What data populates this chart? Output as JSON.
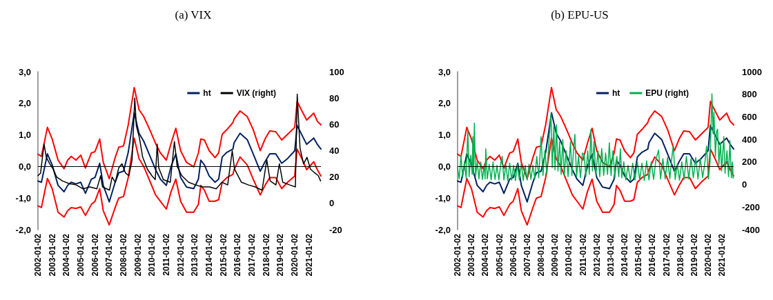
{
  "chart_data": [
    {
      "type": "line",
      "title": "(a) VIX",
      "legend": "top right",
      "x": [
        "2002-01-02",
        "2002-04-01",
        "2002-09-01",
        "2003-01-01",
        "2003-06-01",
        "2003-11-01",
        "2004-02-01",
        "2004-05-01",
        "2004-09-01",
        "2005-01-01",
        "2005-05-01",
        "2005-10-01",
        "2006-01-01",
        "2006-05-01",
        "2006-08-01",
        "2007-01-01",
        "2007-06-01",
        "2007-09-01",
        "2008-01-01",
        "2008-05-01",
        "2008-10-01",
        "2009-02-01",
        "2009-06-01",
        "2009-11-01",
        "2010-04-01",
        "2010-08-01",
        "2011-01-01",
        "2011-05-01",
        "2011-09-01",
        "2012-01-01",
        "2012-06-01",
        "2012-12-01",
        "2013-04-01",
        "2013-06-01",
        "2013-09-01",
        "2014-01-01",
        "2014-06-01",
        "2014-09-01",
        "2014-12-01",
        "2015-04-01",
        "2015-09-01",
        "2015-10-01",
        "2016-03-01",
        "2016-09-01",
        "2017-02-01",
        "2017-08-01",
        "2017-12-01",
        "2018-04-01",
        "2018-09-01",
        "2019-02-01",
        "2019-07-01",
        "2020-01-01",
        "2020-03-01",
        "2020-07-01",
        "2020-11-01",
        "2021-05-01",
        "2021-08-01",
        "2021-11-01"
      ],
      "xlim": [
        "2002-01-02",
        "2021-11-01"
      ],
      "xticks": [
        "2002-01-02",
        "2003-01-02",
        "2004-01-02",
        "2005-01-02",
        "2006-01-02",
        "2007-01-02",
        "2008-01-02",
        "2009-01-02",
        "2010-01-02",
        "2011-01-02",
        "2012-01-02",
        "2013-01-02",
        "2014-01-02",
        "2015-01-02",
        "2016-01-02",
        "2017-01-02",
        "2018-01-02",
        "2019-01-02",
        "2020-01-02",
        "2021-01-02"
      ],
      "ylim": [
        -2,
        3
      ],
      "yticks": [
        {
          "value": -2,
          "label": "-2,0"
        },
        {
          "value": -1,
          "label": "-1,0"
        },
        {
          "value": 0,
          "label": "0,0"
        },
        {
          "value": 1,
          "label": "1,0"
        },
        {
          "value": 2,
          "label": "2,0"
        },
        {
          "value": 3,
          "label": "3,0"
        }
      ],
      "y2lim": [
        -20,
        100
      ],
      "y2ticks": [
        -20,
        0,
        20,
        40,
        60,
        80,
        100
      ],
      "ref_lines": [
        {
          "axis": "y",
          "value": 0,
          "color": "#000000"
        }
      ],
      "series": [
        {
          "color": "#ff0000",
          "values": [
            0.39,
            0.32,
            1.24,
            0.87,
            0.2,
            -0.07,
            0.2,
            0.32,
            0.2,
            0.36,
            -0.05,
            0.43,
            0.47,
            0.87,
            0.13,
            -0.39,
            0.28,
            0.61,
            0.65,
            1.32,
            2.5,
            1.8,
            1.58,
            1.17,
            0.73,
            0.43,
            0.2,
            0.73,
            1.21,
            0.5,
            0.13,
            -0.01,
            0.43,
            0.87,
            0.84,
            0.5,
            0.28,
            0.43,
            1.02,
            1.17,
            1.39,
            1.5,
            1.76,
            1.58,
            1.17,
            0.5,
            0.87,
            1.13,
            1.1,
            0.84,
            1.02,
            1.24,
            2.06,
            1.76,
            1.47,
            1.69,
            1.43,
            1.32
          ]
        },
        {
          "color": "#ff0000",
          "values": [
            -1.25,
            -1.3,
            -0.38,
            -0.7,
            -1.45,
            -1.6,
            -1.4,
            -1.3,
            -1.33,
            -1.28,
            -1.55,
            -1.2,
            -1.1,
            -0.7,
            -1.4,
            -1.85,
            -1.3,
            -1.0,
            -0.95,
            -0.35,
            0.9,
            0.25,
            0.0,
            -0.45,
            -0.9,
            -1.1,
            -1.35,
            -0.8,
            -0.4,
            -1.1,
            -1.45,
            -1.45,
            -1.2,
            -0.6,
            -0.75,
            -1.1,
            -1.1,
            -1.05,
            -0.5,
            -0.35,
            -0.25,
            -0.1,
            0.3,
            0.05,
            -0.4,
            -0.9,
            -0.6,
            -0.35,
            -0.35,
            -0.7,
            -0.5,
            -0.3,
            0.55,
            0.25,
            -0.1,
            0.15,
            -0.1,
            -0.3
          ]
        },
        {
          "name": "ht",
          "color": "#002060",
          "values": [
            -0.46,
            -0.5,
            0.4,
            0.05,
            -0.6,
            -0.8,
            -0.6,
            -0.5,
            -0.55,
            -0.5,
            -0.85,
            -0.4,
            -0.35,
            0.1,
            -0.6,
            -1.12,
            -0.5,
            -0.2,
            -0.15,
            0.45,
            1.7,
            1.05,
            0.8,
            0.35,
            -0.1,
            -0.4,
            -0.6,
            0.0,
            0.4,
            -0.35,
            -0.65,
            -0.7,
            -0.4,
            0.2,
            0.05,
            -0.3,
            -0.5,
            -0.4,
            0.3,
            0.45,
            0.55,
            0.75,
            1.05,
            0.85,
            0.4,
            -0.15,
            0.15,
            0.4,
            0.4,
            0.1,
            0.25,
            0.5,
            1.3,
            1.0,
            0.7,
            0.9,
            0.7,
            0.55
          ]
        },
        {
          "name": "VIX (right)",
          "color": "#000000",
          "axis": "y2",
          "x": [
            "2002-01-02",
            "2002-03-10",
            "2002-06-07",
            "2002-08-04",
            "2002-11-01",
            "2003-01-28",
            "2003-04-25",
            "2003-09-20",
            "2004-03-12",
            "2004-09-07",
            "2005-03-01",
            "2005-08-23",
            "2006-02-18",
            "2006-05-26",
            "2006-07-12",
            "2007-01-07",
            "2007-03-15",
            "2007-06-04",
            "2007-09-01",
            "2007-11-23",
            "2008-02-20",
            "2008-05-18",
            "2008-08-07",
            "2008-10-15",
            "2008-11-23",
            "2009-02-09",
            "2009-05-06",
            "2009-09-03",
            "2009-12-26",
            "2010-03-23",
            "2010-05-12",
            "2010-06-20",
            "2010-10-17",
            "2011-04-12",
            "2011-07-26",
            "2011-10-06",
            "2012-02-01",
            "2012-07-23",
            "2013-01-17",
            "2013-07-12",
            "2014-01-06",
            "2014-07-01",
            "2014-11-23",
            "2015-04-20",
            "2015-08-15",
            "2015-10-12",
            "2016-04-06",
            "2016-10-01",
            "2017-03-23",
            "2017-09-17",
            "2018-01-15",
            "2018-04-12",
            "2018-09-06",
            "2018-12-03",
            "2019-03-01",
            "2019-08-23",
            "2020-01-17",
            "2020-03-04",
            "2020-05-15",
            "2020-08-12",
            "2020-11-09",
            "2021-02-06",
            "2021-06-01",
            "2021-08-26",
            "2021-10-23"
          ],
          "values": [
            21,
            23,
            45,
            35,
            30,
            26,
            20,
            17,
            15,
            14,
            11,
            12.5,
            11,
            21,
            12.5,
            10,
            20,
            16,
            27,
            30,
            23,
            21,
            33,
            80,
            59,
            50,
            35,
            26,
            21,
            18,
            45,
            27,
            18,
            16,
            47,
            28,
            21,
            16,
            14,
            12.5,
            12.5,
            11,
            16,
            14,
            40,
            26,
            16,
            14,
            12.5,
            10,
            33,
            17,
            14,
            30,
            16,
            14,
            12.5,
            83,
            42,
            30,
            35,
            26,
            23,
            21,
            17
          ]
        }
      ]
    },
    {
      "type": "line",
      "title": "(b) EPU-US",
      "legend": "top right",
      "x": [
        "2002-01-02",
        "2002-04-01",
        "2002-09-01",
        "2003-01-01",
        "2003-06-01",
        "2003-11-01",
        "2004-02-01",
        "2004-05-01",
        "2004-09-01",
        "2005-01-01",
        "2005-05-01",
        "2005-10-01",
        "2006-01-01",
        "2006-05-01",
        "2006-08-01",
        "2007-01-01",
        "2007-06-01",
        "2007-09-01",
        "2008-01-01",
        "2008-05-01",
        "2008-10-01",
        "2009-02-01",
        "2009-06-01",
        "2009-11-01",
        "2010-04-01",
        "2010-08-01",
        "2011-01-01",
        "2011-05-01",
        "2011-09-01",
        "2012-01-01",
        "2012-06-01",
        "2012-12-01",
        "2013-04-01",
        "2013-06-01",
        "2013-09-01",
        "2014-01-01",
        "2014-06-01",
        "2014-09-01",
        "2014-12-01",
        "2015-04-01",
        "2015-09-01",
        "2015-10-01",
        "2016-03-01",
        "2016-09-01",
        "2017-02-01",
        "2017-08-01",
        "2017-12-01",
        "2018-04-01",
        "2018-09-01",
        "2019-02-01",
        "2019-07-01",
        "2020-01-01",
        "2020-03-01",
        "2020-07-01",
        "2020-11-01",
        "2021-05-01",
        "2021-08-01",
        "2021-11-01"
      ],
      "xlim": [
        "2002-01-02",
        "2021-11-01"
      ],
      "xticks": [
        "2002-01-02",
        "2003-01-02",
        "2004-01-02",
        "2005-01-02",
        "2006-01-02",
        "2007-01-02",
        "2008-01-02",
        "2009-01-02",
        "2010-01-02",
        "2011-01-02",
        "2012-01-02",
        "2013-01-02",
        "2014-01-02",
        "2015-01-02",
        "2016-01-02",
        "2017-01-02",
        "2018-01-02",
        "2019-01-02",
        "2020-01-02",
        "2021-01-02"
      ],
      "ylim": [
        -2,
        3
      ],
      "yticks": [
        {
          "value": -2,
          "label": "-2,0"
        },
        {
          "value": -1,
          "label": "-1,0"
        },
        {
          "value": 0,
          "label": "0,0"
        },
        {
          "value": 1,
          "label": "1,0"
        },
        {
          "value": 2,
          "label": "2,0"
        },
        {
          "value": 3,
          "label": "3,0"
        }
      ],
      "y2lim": [
        -400,
        1000
      ],
      "y2ticks": [
        -400,
        -200,
        0,
        200,
        400,
        600,
        800,
        1000
      ],
      "ref_lines": [
        {
          "axis": "y",
          "value": 0,
          "color": "#000000"
        }
      ],
      "series": [
        {
          "color": "#ff0000",
          "values": [
            0.39,
            0.32,
            1.24,
            0.87,
            0.2,
            -0.07,
            0.2,
            0.32,
            0.2,
            0.36,
            -0.05,
            0.43,
            0.47,
            0.87,
            0.13,
            -0.39,
            0.28,
            0.61,
            0.65,
            1.32,
            2.5,
            1.8,
            1.58,
            1.17,
            0.73,
            0.43,
            0.2,
            0.73,
            1.21,
            0.5,
            0.13,
            -0.01,
            0.43,
            0.87,
            0.84,
            0.5,
            0.28,
            0.43,
            1.02,
            1.17,
            1.39,
            1.5,
            1.76,
            1.58,
            1.17,
            0.5,
            0.87,
            1.13,
            1.1,
            0.84,
            1.02,
            1.24,
            2.06,
            1.76,
            1.47,
            1.69,
            1.43,
            1.32
          ]
        },
        {
          "color": "#ff0000",
          "values": [
            -1.25,
            -1.3,
            -0.38,
            -0.7,
            -1.45,
            -1.6,
            -1.4,
            -1.3,
            -1.33,
            -1.28,
            -1.55,
            -1.2,
            -1.1,
            -0.7,
            -1.4,
            -1.85,
            -1.3,
            -1.0,
            -0.95,
            -0.35,
            0.9,
            0.25,
            0.0,
            -0.45,
            -0.9,
            -1.1,
            -1.35,
            -0.8,
            -0.4,
            -1.1,
            -1.45,
            -1.45,
            -1.2,
            -0.6,
            -0.75,
            -1.1,
            -1.1,
            -1.05,
            -0.5,
            -0.35,
            -0.25,
            -0.1,
            0.3,
            0.05,
            -0.4,
            -0.9,
            -0.6,
            -0.35,
            -0.35,
            -0.7,
            -0.5,
            -0.3,
            0.55,
            0.25,
            -0.1,
            0.15,
            -0.1,
            -0.3
          ]
        },
        {
          "name": "ht",
          "color": "#002060",
          "values": [
            -0.46,
            -0.5,
            0.4,
            0.05,
            -0.6,
            -0.8,
            -0.6,
            -0.5,
            -0.55,
            -0.5,
            -0.85,
            -0.4,
            -0.35,
            0.1,
            -0.6,
            -1.12,
            -0.5,
            -0.2,
            -0.15,
            0.45,
            1.7,
            1.05,
            0.8,
            0.35,
            -0.1,
            -0.4,
            -0.6,
            0.0,
            0.4,
            -0.35,
            -0.65,
            -0.7,
            -0.4,
            0.2,
            0.05,
            -0.3,
            -0.5,
            -0.4,
            0.3,
            0.45,
            0.55,
            0.75,
            1.05,
            0.85,
            0.4,
            -0.15,
            0.15,
            0.4,
            0.4,
            0.1,
            0.25,
            0.5,
            1.3,
            1.0,
            0.7,
            0.9,
            0.7,
            0.55
          ]
        },
        {
          "name": "EPU (right)",
          "color": "#00b050",
          "axis": "y2",
          "x": [
            "2002-01-02",
            "2002-02-15",
            "2002-04-01",
            "2002-05-15",
            "2002-07-01",
            "2002-08-15",
            "2002-09-27",
            "2002-11-01",
            "2002-12-15",
            "2003-01-20",
            "2003-02-06",
            "2003-02-25",
            "2003-03-18",
            "2003-04-20",
            "2003-06-01",
            "2003-07-15",
            "2003-09-01",
            "2003-10-15",
            "2003-12-01",
            "2003-12-25",
            "2004-01-12",
            "2004-02-20",
            "2004-04-10",
            "2004-06-01",
            "2004-07-20",
            "2004-09-10",
            "2004-11-01",
            "2004-12-20",
            "2005-02-10",
            "2005-03-17",
            "2005-05-01",
            "2005-06-20",
            "2005-08-10",
            "2005-10-01",
            "2005-11-20",
            "2006-01-10",
            "2006-03-01",
            "2006-04-20",
            "2006-06-10",
            "2006-08-01",
            "2006-09-20",
            "2006-11-10",
            "2007-01-01",
            "2007-02-20",
            "2007-04-10",
            "2007-06-01",
            "2007-07-20",
            "2007-09-10",
            "2007-11-01",
            "2008-01-01",
            "2008-02-20",
            "2008-04-10",
            "2008-06-01",
            "2008-07-20",
            "2008-09-18",
            "2008-10-20",
            "2008-12-01",
            "2009-01-01",
            "2009-02-09",
            "2009-03-20",
            "2009-05-01",
            "2009-06-10",
            "2009-07-24",
            "2009-09-01",
            "2009-10-20",
            "2009-12-10",
            "2010-02-12",
            "2010-03-20",
            "2010-05-01",
            "2010-06-06",
            "2010-07-20",
            "2010-09-10",
            "2010-11-01",
            "2010-12-20",
            "2011-02-06",
            "2011-03-20",
            "2011-05-10",
            "2011-06-20",
            "2011-08-01",
            "2011-09-10",
            "2011-10-20",
            "2011-12-10",
            "2012-02-01",
            "2012-03-20",
            "2012-05-10",
            "2012-07-01",
            "2012-08-20",
            "2012-10-10",
            "2012-11-26",
            "2013-01-10",
            "2013-03-01",
            "2013-04-20",
            "2013-06-10",
            "2013-08-01",
            "2013-09-12",
            "2013-10-20",
            "2013-12-10",
            "2014-02-01",
            "2014-04-01",
            "2014-06-01",
            "2014-08-01",
            "2014-10-01",
            "2014-12-01",
            "2015-02-01",
            "2015-04-01",
            "2015-06-01",
            "2015-08-01",
            "2015-10-01",
            "2015-12-01",
            "2016-02-01",
            "2016-04-01",
            "2016-06-09",
            "2016-08-01",
            "2016-10-01",
            "2016-12-01",
            "2017-02-01",
            "2017-04-01",
            "2017-05-15",
            "2017-07-01",
            "2017-08-20",
            "2017-10-15",
            "2017-12-10",
            "2018-02-10",
            "2018-04-10",
            "2018-06-10",
            "2018-08-10",
            "2018-10-10",
            "2018-12-10",
            "2019-02-10",
            "2019-04-10",
            "2019-06-10",
            "2019-08-10",
            "2019-10-10",
            "2019-11-20",
            "2020-01-10",
            "2020-02-20",
            "2020-04-10",
            "2020-05-10",
            "2020-06-01",
            "2020-07-10",
            "2020-08-10",
            "2020-09-06",
            "2020-10-10",
            "2020-11-20",
            "2020-12-20",
            "2021-02-15",
            "2021-03-20",
            "2021-05-10",
            "2021-06-20",
            "2021-07-25",
            "2021-09-01",
            "2021-10-01",
            "2021-10-18"
          ],
          "values": [
            150,
            50,
            260,
            60,
            200,
            55,
            490,
            70,
            260,
            90,
            425,
            100,
            545,
            70,
            210,
            50,
            200,
            45,
            170,
            50,
            317,
            50,
            180,
            40,
            200,
            45,
            170,
            40,
            190,
            250,
            40,
            180,
            35,
            190,
            40,
            170,
            35,
            180,
            40,
            190,
            35,
            170,
            40,
            180,
            45,
            170,
            50,
            250,
            60,
            425,
            80,
            300,
            90,
            350,
            630,
            150,
            520,
            130,
            530,
            120,
            380,
            90,
            400,
            80,
            300,
            70,
            380,
            80,
            300,
            445,
            70,
            250,
            60,
            280,
            263,
            70,
            300,
            90,
            490,
            120,
            380,
            80,
            300,
            70,
            320,
            80,
            280,
            90,
            370,
            80,
            300,
            60,
            250,
            70,
            317,
            60,
            200,
            40,
            170,
            35,
            190,
            40,
            200,
            40,
            190,
            35,
            210,
            40,
            200,
            45,
            220,
            306,
            50,
            230,
            50,
            240,
            50,
            210,
            350,
            45,
            180,
            40,
            200,
            45,
            250,
            50,
            230,
            60,
            240,
            50,
            230,
            60,
            200,
            340,
            50,
            200,
            805,
            450,
            640,
            250,
            470,
            490,
            180,
            370,
            120,
            425,
            100,
            300,
            70,
            390,
            60,
            200,
            56
          ]
        }
      ]
    }
  ]
}
